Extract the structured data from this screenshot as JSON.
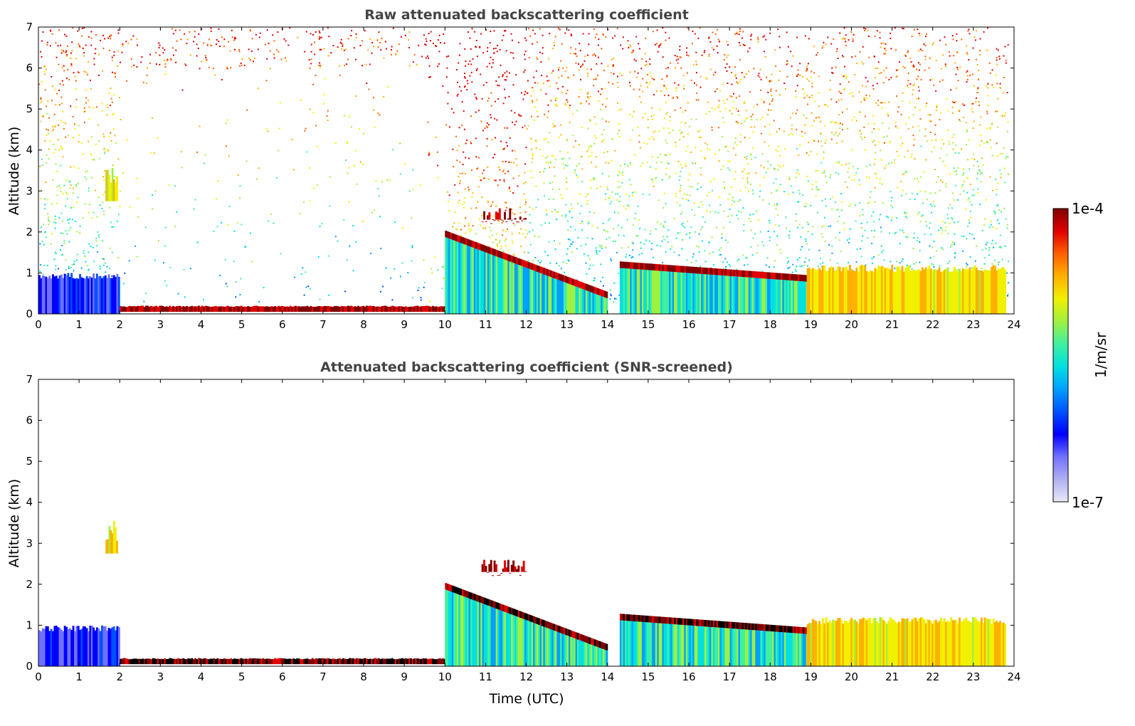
{
  "chart_data": [
    {
      "type": "heatmap",
      "id": "raw",
      "title": "Raw attenuated backscattering coefficient",
      "xlabel": "",
      "ylabel": "Altitude (km)",
      "xlim": [
        0,
        24
      ],
      "ylim": [
        0,
        7
      ],
      "x_ticks": [
        "0",
        "1",
        "2",
        "3",
        "4",
        "5",
        "6",
        "7",
        "8",
        "9",
        "10",
        "11",
        "12",
        "13",
        "14",
        "15",
        "16",
        "17",
        "18",
        "19",
        "20",
        "21",
        "22",
        "23",
        "24"
      ],
      "y_ticks": [
        "0",
        "1",
        "2",
        "3",
        "4",
        "5",
        "6",
        "7"
      ],
      "features": [
        {
          "name": "boundary-layer-aerosol",
          "t_start": 0.0,
          "t_end": 2.0,
          "alt_top_km": 1.0,
          "level": "low"
        },
        {
          "name": "elevated-aerosol-layer",
          "t_start": 1.65,
          "t_end": 1.95,
          "alt_bottom_km": 2.75,
          "alt_top_km": 3.6,
          "level": "high"
        },
        {
          "name": "surface-layer",
          "t_start": 2.0,
          "t_end": 10.1,
          "alt_bottom_km": 0.05,
          "alt_top_km": 0.2,
          "level": "very-high"
        },
        {
          "name": "cloud-base-layer",
          "t_start": 10.0,
          "t_end": 14.0,
          "alt_from_km": 1.95,
          "alt_to_km": 0.45,
          "level": "very-high"
        },
        {
          "name": "mid-level-cloud",
          "t_start": 10.9,
          "t_end": 12.0,
          "alt_bottom_km": 2.3,
          "alt_top_km": 2.6,
          "level": "very-high"
        },
        {
          "name": "cloud-layer-afternoon",
          "t_start": 14.3,
          "t_end": 19.8,
          "alt_from_km": 1.2,
          "alt_to_km": 0.8,
          "level": "very-high"
        },
        {
          "name": "boundary-layer-evening",
          "t_start": 18.9,
          "t_end": 23.8,
          "alt_top_km": 1.2,
          "level": "high"
        }
      ],
      "noise_above_layers": true
    },
    {
      "type": "heatmap",
      "id": "screened",
      "title": "Attenuated backscattering coefficient (SNR-screened)",
      "xlabel": "Time (UTC)",
      "ylabel": "Altitude (km)",
      "xlim": [
        0,
        24
      ],
      "ylim": [
        0,
        7
      ],
      "x_ticks": [
        "0",
        "1",
        "2",
        "3",
        "4",
        "5",
        "6",
        "7",
        "8",
        "9",
        "10",
        "11",
        "12",
        "13",
        "14",
        "15",
        "16",
        "17",
        "18",
        "19",
        "20",
        "21",
        "22",
        "23",
        "24"
      ],
      "y_ticks": [
        "0",
        "1",
        "2",
        "3",
        "4",
        "5",
        "6",
        "7"
      ],
      "features": [
        {
          "name": "boundary-layer-aerosol",
          "t_start": 0.0,
          "t_end": 2.0,
          "alt_top_km": 1.0,
          "level": "low"
        },
        {
          "name": "elevated-aerosol-layer",
          "t_start": 1.65,
          "t_end": 1.95,
          "alt_bottom_km": 2.75,
          "alt_top_km": 3.6,
          "level": "high"
        },
        {
          "name": "surface-layer",
          "t_start": 2.0,
          "t_end": 10.1,
          "alt_bottom_km": 0.05,
          "alt_top_km": 0.2,
          "level": "saturated"
        },
        {
          "name": "cloud-base-layer",
          "t_start": 10.0,
          "t_end": 14.0,
          "alt_from_km": 1.95,
          "alt_to_km": 0.45,
          "level": "saturated"
        },
        {
          "name": "mid-level-cloud",
          "t_start": 10.9,
          "t_end": 12.0,
          "alt_bottom_km": 2.3,
          "alt_top_km": 2.6,
          "level": "very-high"
        },
        {
          "name": "cloud-layer-afternoon",
          "t_start": 14.3,
          "t_end": 19.8,
          "alt_from_km": 1.2,
          "alt_to_km": 0.8,
          "level": "saturated"
        },
        {
          "name": "boundary-layer-evening",
          "t_start": 18.9,
          "t_end": 23.8,
          "alt_top_km": 1.2,
          "level": "high"
        }
      ],
      "noise_above_layers": false
    }
  ],
  "colorbar": {
    "label": "1/m/sr",
    "max_label": "1e-4",
    "min_label": "1e-7",
    "colors": [
      "#e8e8f8",
      "#b0b0f0",
      "#7070ff",
      "#0000ff",
      "#0050ff",
      "#00a0ff",
      "#00e0e0",
      "#40f0a0",
      "#a0f040",
      "#f0f000",
      "#ffb000",
      "#ff6000",
      "#e00000",
      "#800000"
    ]
  }
}
